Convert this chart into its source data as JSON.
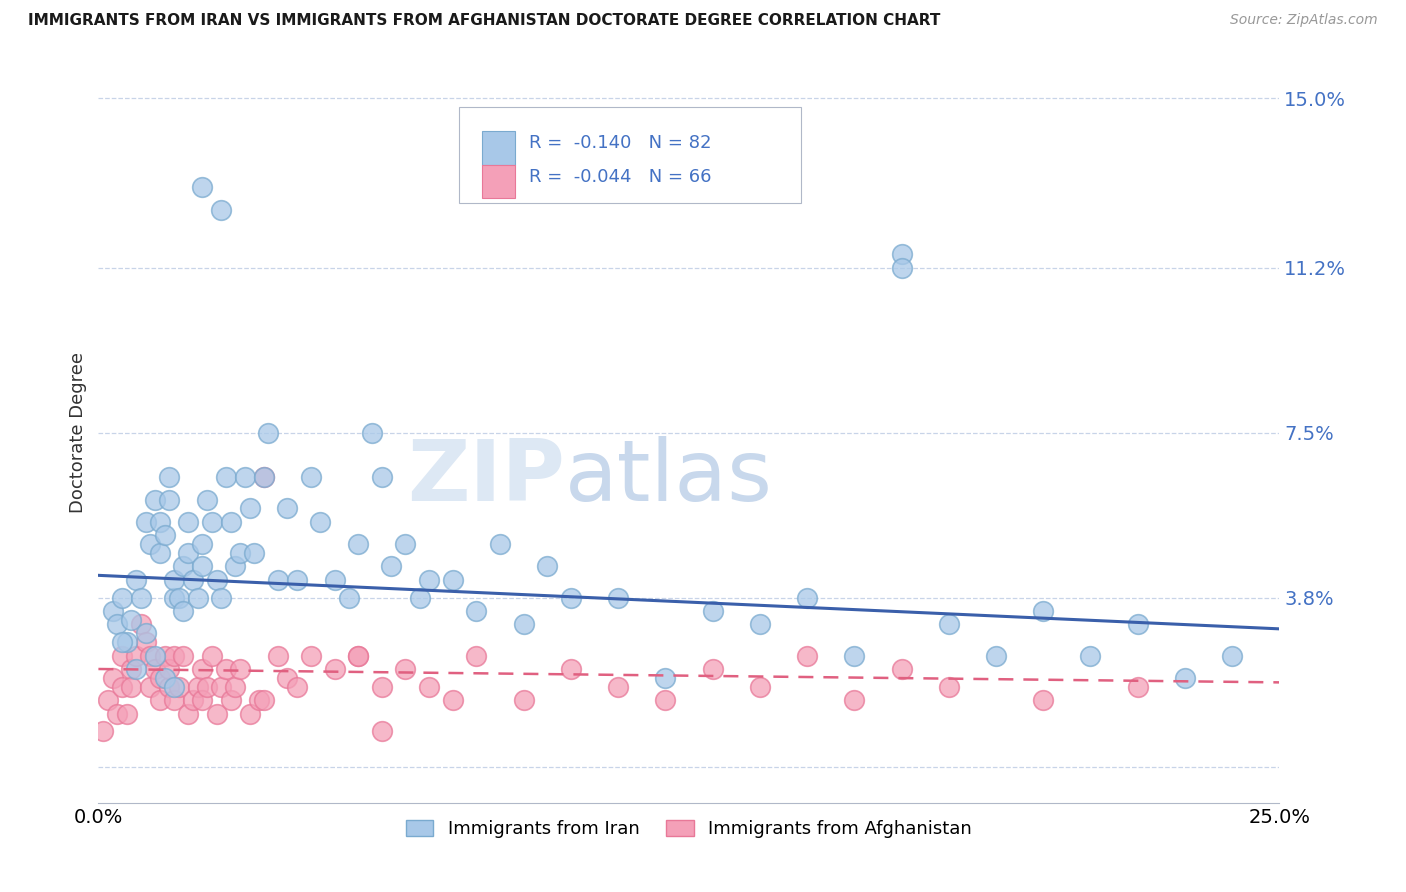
{
  "title": "IMMIGRANTS FROM IRAN VS IMMIGRANTS FROM AFGHANISTAN DOCTORATE DEGREE CORRELATION CHART",
  "source": "Source: ZipAtlas.com",
  "ylabel": "Doctorate Degree",
  "xlim": [
    0.0,
    0.25
  ],
  "ylim": [
    -0.008,
    0.158
  ],
  "ytick_vals": [
    0.0,
    0.038,
    0.075,
    0.112,
    0.15
  ],
  "ytick_labels": [
    "",
    "3.8%",
    "7.5%",
    "11.2%",
    "15.0%"
  ],
  "xtick_vals": [
    0.0,
    0.25
  ],
  "xtick_labels": [
    "0.0%",
    "25.0%"
  ],
  "legend_labels": [
    "Immigrants from Iran",
    "Immigrants from Afghanistan"
  ],
  "iran_R": "-0.140",
  "iran_N": "82",
  "afghan_R": "-0.044",
  "afghan_N": "66",
  "iran_marker_color": "#a8c8e8",
  "afghan_marker_color": "#f4a0b8",
  "iran_marker_edge": "#7aaacf",
  "afghan_marker_edge": "#e87898",
  "iran_line_color": "#3a5faa",
  "afghan_line_color": "#e06080",
  "label_color": "#4472c4",
  "background_color": "#ffffff",
  "grid_color": "#c8d4e8",
  "iran_x": [
    0.003,
    0.004,
    0.005,
    0.006,
    0.007,
    0.008,
    0.009,
    0.01,
    0.011,
    0.012,
    0.013,
    0.013,
    0.014,
    0.015,
    0.015,
    0.016,
    0.016,
    0.017,
    0.018,
    0.018,
    0.019,
    0.019,
    0.02,
    0.021,
    0.022,
    0.022,
    0.023,
    0.024,
    0.025,
    0.026,
    0.027,
    0.028,
    0.029,
    0.03,
    0.031,
    0.032,
    0.033,
    0.035,
    0.036,
    0.038,
    0.04,
    0.042,
    0.045,
    0.047,
    0.05,
    0.053,
    0.055,
    0.058,
    0.06,
    0.062,
    0.065,
    0.068,
    0.07,
    0.075,
    0.08,
    0.085,
    0.09,
    0.095,
    0.1,
    0.11,
    0.12,
    0.13,
    0.14,
    0.15,
    0.16,
    0.17,
    0.18,
    0.19,
    0.2,
    0.21,
    0.22,
    0.23,
    0.24,
    0.022,
    0.026,
    0.17,
    0.005,
    0.008,
    0.01,
    0.012,
    0.014,
    0.016
  ],
  "iran_y": [
    0.035,
    0.032,
    0.038,
    0.028,
    0.033,
    0.042,
    0.038,
    0.055,
    0.05,
    0.06,
    0.055,
    0.048,
    0.052,
    0.065,
    0.06,
    0.038,
    0.042,
    0.038,
    0.045,
    0.035,
    0.055,
    0.048,
    0.042,
    0.038,
    0.05,
    0.045,
    0.06,
    0.055,
    0.042,
    0.038,
    0.065,
    0.055,
    0.045,
    0.048,
    0.065,
    0.058,
    0.048,
    0.065,
    0.075,
    0.042,
    0.058,
    0.042,
    0.065,
    0.055,
    0.042,
    0.038,
    0.05,
    0.075,
    0.065,
    0.045,
    0.05,
    0.038,
    0.042,
    0.042,
    0.035,
    0.05,
    0.032,
    0.045,
    0.038,
    0.038,
    0.02,
    0.035,
    0.032,
    0.038,
    0.025,
    0.115,
    0.032,
    0.025,
    0.035,
    0.025,
    0.032,
    0.02,
    0.025,
    0.13,
    0.125,
    0.112,
    0.028,
    0.022,
    0.03,
    0.025,
    0.02,
    0.018
  ],
  "afghan_x": [
    0.001,
    0.002,
    0.003,
    0.004,
    0.005,
    0.005,
    0.006,
    0.007,
    0.007,
    0.008,
    0.009,
    0.01,
    0.011,
    0.011,
    0.012,
    0.013,
    0.013,
    0.014,
    0.015,
    0.015,
    0.016,
    0.016,
    0.017,
    0.018,
    0.019,
    0.02,
    0.021,
    0.022,
    0.022,
    0.023,
    0.024,
    0.025,
    0.026,
    0.027,
    0.028,
    0.029,
    0.03,
    0.032,
    0.034,
    0.035,
    0.038,
    0.04,
    0.042,
    0.045,
    0.05,
    0.055,
    0.06,
    0.065,
    0.07,
    0.075,
    0.08,
    0.09,
    0.1,
    0.11,
    0.12,
    0.13,
    0.14,
    0.15,
    0.16,
    0.17,
    0.18,
    0.2,
    0.22,
    0.035,
    0.055,
    0.06
  ],
  "afghan_y": [
    0.008,
    0.015,
    0.02,
    0.012,
    0.025,
    0.018,
    0.012,
    0.022,
    0.018,
    0.025,
    0.032,
    0.028,
    0.018,
    0.025,
    0.022,
    0.015,
    0.02,
    0.025,
    0.018,
    0.022,
    0.015,
    0.025,
    0.018,
    0.025,
    0.012,
    0.015,
    0.018,
    0.022,
    0.015,
    0.018,
    0.025,
    0.012,
    0.018,
    0.022,
    0.015,
    0.018,
    0.022,
    0.012,
    0.015,
    0.015,
    0.025,
    0.02,
    0.018,
    0.025,
    0.022,
    0.025,
    0.008,
    0.022,
    0.018,
    0.015,
    0.025,
    0.015,
    0.022,
    0.018,
    0.015,
    0.022,
    0.018,
    0.025,
    0.015,
    0.022,
    0.018,
    0.015,
    0.018,
    0.065,
    0.025,
    0.018
  ],
  "iran_line_x": [
    0.0,
    0.25
  ],
  "iran_line_y": [
    0.043,
    0.031
  ],
  "afghan_line_x": [
    0.0,
    0.25
  ],
  "afghan_line_y": [
    0.022,
    0.019
  ]
}
